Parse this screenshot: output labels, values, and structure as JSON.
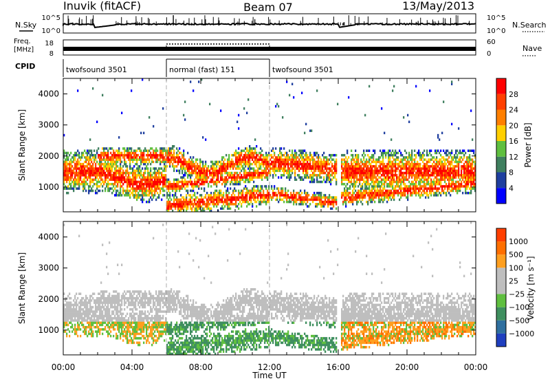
{
  "header": {
    "station": "Inuvik (fitACF)",
    "beam": "Beam 07",
    "date": "13/May/2013"
  },
  "left_labels": {
    "nsky": "N.Sky",
    "freq_line1": "Freq.",
    "freq_line2": "[MHz]",
    "cpid": "CPID"
  },
  "right_labels": {
    "nsearch": "N.Search",
    "nave": "Nave"
  },
  "noise_axis": {
    "left_ticks": [
      "10^5",
      "10^0"
    ],
    "right_ticks": [
      "10^5",
      "10^0"
    ]
  },
  "freq_axis": {
    "left_ticks": [
      "18",
      "8"
    ],
    "right_ticks": [
      "60",
      "0"
    ]
  },
  "cpid_segments": [
    {
      "label": "twofsound 3501",
      "start_h": 0,
      "end_h": 6
    },
    {
      "label": "normal (fast) 151",
      "start_h": 6,
      "end_h": 12
    },
    {
      "label": "twofsound 3501",
      "start_h": 12,
      "end_h": 24
    }
  ],
  "colors": {
    "power_scale": [
      "#0000ff",
      "#1f3f9f",
      "#3f7f5f",
      "#5fbf3f",
      "#ffcf00",
      "#ff7f00",
      "#ff3f00",
      "#ff0000"
    ],
    "velocity_scale": [
      "#1f3fbf",
      "#2f6f9f",
      "#3f8f5f",
      "#5fbf3f",
      "#bebebe",
      "#bebebe",
      "#ff9f1f",
      "#ff6f00",
      "#ff3f00",
      "#ff0000"
    ]
  },
  "chart_data": [
    {
      "type": "heatmap",
      "name": "power",
      "xlabel": "Time UT",
      "ylabel": "Slant Range [km]",
      "x_range_hours": [
        0,
        24
      ],
      "y_range_km": [
        200,
        4500
      ],
      "x_ticks": [
        "00:00",
        "04:00",
        "08:00",
        "12:00",
        "16:00",
        "20:00",
        "00:00"
      ],
      "y_ticks": [
        1000,
        2000,
        3000,
        4000
      ],
      "colorbar_label": "Power [dB]",
      "colorbar_ticks": [
        "28",
        "24",
        "20",
        "16",
        "12",
        "8",
        "4"
      ],
      "colorbar_range": [
        0,
        32
      ]
    },
    {
      "type": "heatmap",
      "name": "velocity",
      "xlabel": "Time UT",
      "ylabel": "Slant Range [km]",
      "x_range_hours": [
        0,
        24
      ],
      "y_range_km": [
        200,
        4500
      ],
      "x_ticks": [
        "00:00",
        "04:00",
        "08:00",
        "12:00",
        "16:00",
        "20:00",
        "00:00"
      ],
      "y_ticks": [
        1000,
        2000,
        3000,
        4000
      ],
      "colorbar_label": "Velocity [m s⁻¹]",
      "colorbar_ticks": [
        "1000",
        "500",
        "100",
        "25",
        "−25",
        "−100",
        "−500",
        "−1000"
      ]
    }
  ]
}
